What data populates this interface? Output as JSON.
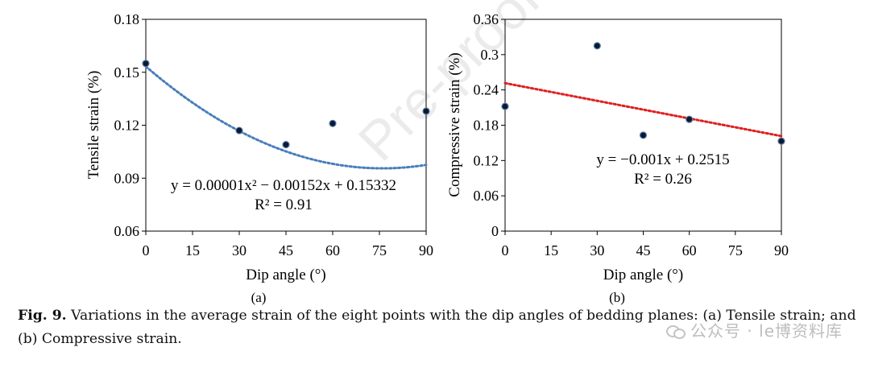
{
  "chart_data": [
    {
      "type": "scatter",
      "panel_label": "(a)",
      "xlabel": "Dip angle (°)",
      "ylabel": "Tensile strain (%)",
      "x_ticks": [
        0,
        15,
        30,
        45,
        60,
        75,
        90
      ],
      "y_ticks": [
        0.06,
        0.09,
        0.12,
        0.15,
        0.18
      ],
      "y_tick_labels": [
        "0.06",
        "0.09",
        "0.12",
        "0.15",
        "0.18"
      ],
      "xlim": [
        0,
        90
      ],
      "ylim": [
        0.06,
        0.18
      ],
      "points": [
        {
          "x": 0,
          "y": 0.155
        },
        {
          "x": 30,
          "y": 0.117
        },
        {
          "x": 45,
          "y": 0.109
        },
        {
          "x": 60,
          "y": 0.121
        },
        {
          "x": 90,
          "y": 0.128
        }
      ],
      "trendline": {
        "kind": "polynomial",
        "coefficients": [
          1e-05,
          -0.00152,
          0.15332
        ],
        "color": "#4a7ebb"
      },
      "equation": "y = 0.00001x² − 0.00152x + 0.15332",
      "r_squared": "R² = 0.91",
      "grid": false
    },
    {
      "type": "scatter",
      "panel_label": "(b)",
      "xlabel": "Dip angle (°)",
      "ylabel": "Compressive strain (%)",
      "x_ticks": [
        0,
        15,
        30,
        45,
        60,
        75,
        90
      ],
      "y_ticks": [
        0,
        0.06,
        0.12,
        0.18,
        0.24,
        0.3,
        0.36
      ],
      "y_tick_labels": [
        "0",
        "0.06",
        "0.12",
        "0.18",
        "0.24",
        "0.3",
        "0.36"
      ],
      "xlim": [
        0,
        90
      ],
      "ylim": [
        0,
        0.36
      ],
      "points": [
        {
          "x": 0,
          "y": 0.212
        },
        {
          "x": 30,
          "y": 0.315
        },
        {
          "x": 45,
          "y": 0.163
        },
        {
          "x": 60,
          "y": 0.19
        },
        {
          "x": 90,
          "y": 0.153
        }
      ],
      "trendline": {
        "kind": "linear",
        "coefficients": [
          -0.001,
          0.2515
        ],
        "color": "#e02020"
      },
      "equation": "y = −0.001x + 0.2515",
      "r_squared": "R² = 0.26",
      "grid": false
    }
  ],
  "caption": {
    "label": "Fig. 9.",
    "text": " Variations in the average strain of the eight points with the dip angles of bedding planes: (a) Tensile strain; and (b) Compressive strain."
  },
  "watermark": {
    "diagonal": "Pre-proof",
    "brand": "公众号 · le博资料库"
  }
}
